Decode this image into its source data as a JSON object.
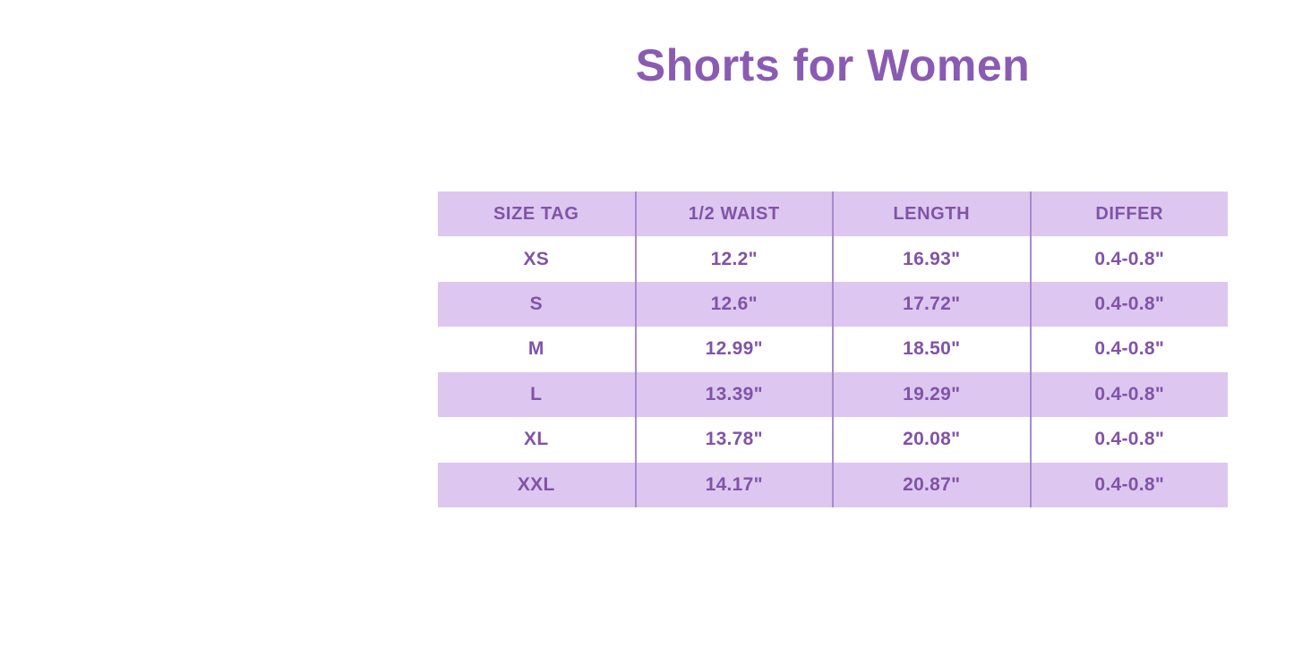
{
  "title": "Shorts for Women",
  "colors": {
    "title": "#8a5bb3",
    "text": "#8153a8",
    "header_bg": "#ddc7f0",
    "row_bg": "#ffffff",
    "row_alt_bg": "#ddc7f0",
    "divider": "#a98ad0"
  },
  "table": {
    "headers": [
      "SIZE TAG",
      "1/2 WAIST",
      "LENGTH",
      "DIFFER"
    ],
    "rows": [
      [
        "XS",
        "12.2\"",
        "16.93\"",
        "0.4-0.8\""
      ],
      [
        "S",
        "12.6\"",
        "17.72\"",
        "0.4-0.8\""
      ],
      [
        "M",
        "12.99\"",
        "18.50\"",
        "0.4-0.8\""
      ],
      [
        "L",
        "13.39\"",
        "19.29\"",
        "0.4-0.8\""
      ],
      [
        "XL",
        "13.78\"",
        "20.08\"",
        "0.4-0.8\""
      ],
      [
        "XXL",
        "14.17\"",
        "20.87\"",
        "0.4-0.8\""
      ]
    ]
  },
  "chart_data": {
    "type": "table",
    "title": "Shorts for Women",
    "columns": [
      "SIZE TAG",
      "1/2 WAIST",
      "LENGTH",
      "DIFFER"
    ],
    "rows": [
      {
        "size_tag": "XS",
        "half_waist_in": 12.2,
        "length_in": 16.93,
        "differ_in": "0.4-0.8"
      },
      {
        "size_tag": "S",
        "half_waist_in": 12.6,
        "length_in": 17.72,
        "differ_in": "0.4-0.8"
      },
      {
        "size_tag": "M",
        "half_waist_in": 12.99,
        "length_in": 18.5,
        "differ_in": "0.4-0.8"
      },
      {
        "size_tag": "L",
        "half_waist_in": 13.39,
        "length_in": 19.29,
        "differ_in": "0.4-0.8"
      },
      {
        "size_tag": "XL",
        "half_waist_in": 13.78,
        "length_in": 20.08,
        "differ_in": "0.4-0.8"
      },
      {
        "size_tag": "XXL",
        "half_waist_in": 14.17,
        "length_in": 20.87,
        "differ_in": "0.4-0.8"
      }
    ],
    "units": "inches",
    "layout": {
      "header_fill": "lavender",
      "row_striping": "white/lavender alternating",
      "gridlines": "vertical only"
    }
  }
}
